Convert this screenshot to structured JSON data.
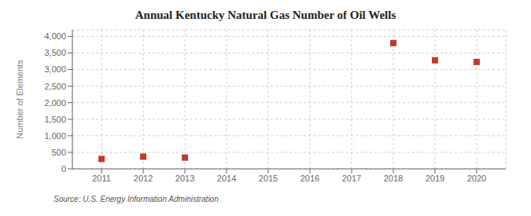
{
  "chart_data": {
    "type": "scatter",
    "title": "Annual Kentucky Natural Gas Number of Oil Wells",
    "y_label": "Number of Elements",
    "annotations": [
      "Source: U.S. Energy Information Administration"
    ],
    "x": [
      2011,
      2012,
      2013,
      2018,
      2019,
      2020
    ],
    "values": [
      300,
      370,
      340,
      3800,
      3280,
      3230
    ],
    "color": "#c0392b",
    "marker": "square",
    "xlim": [
      2010.3,
      2020.7
    ],
    "xticks": [
      2011,
      2012,
      2013,
      2014,
      2015,
      2016,
      2017,
      2018,
      2019,
      2020
    ],
    "ylim": [
      0,
      4200
    ],
    "yticks": [
      0,
      500,
      {
        "value": 1000,
        "label": "1,000"
      },
      {
        "value": 1500,
        "label": "1,500"
      },
      {
        "value": 2000,
        "label": "2,000"
      },
      {
        "value": 2500,
        "label": "2,500"
      },
      {
        "value": 3000,
        "label": "3,000"
      },
      {
        "value": 3500,
        "label": "3,500"
      },
      {
        "value": 4000,
        "label": "4,000"
      }
    ],
    "grid": true
  }
}
